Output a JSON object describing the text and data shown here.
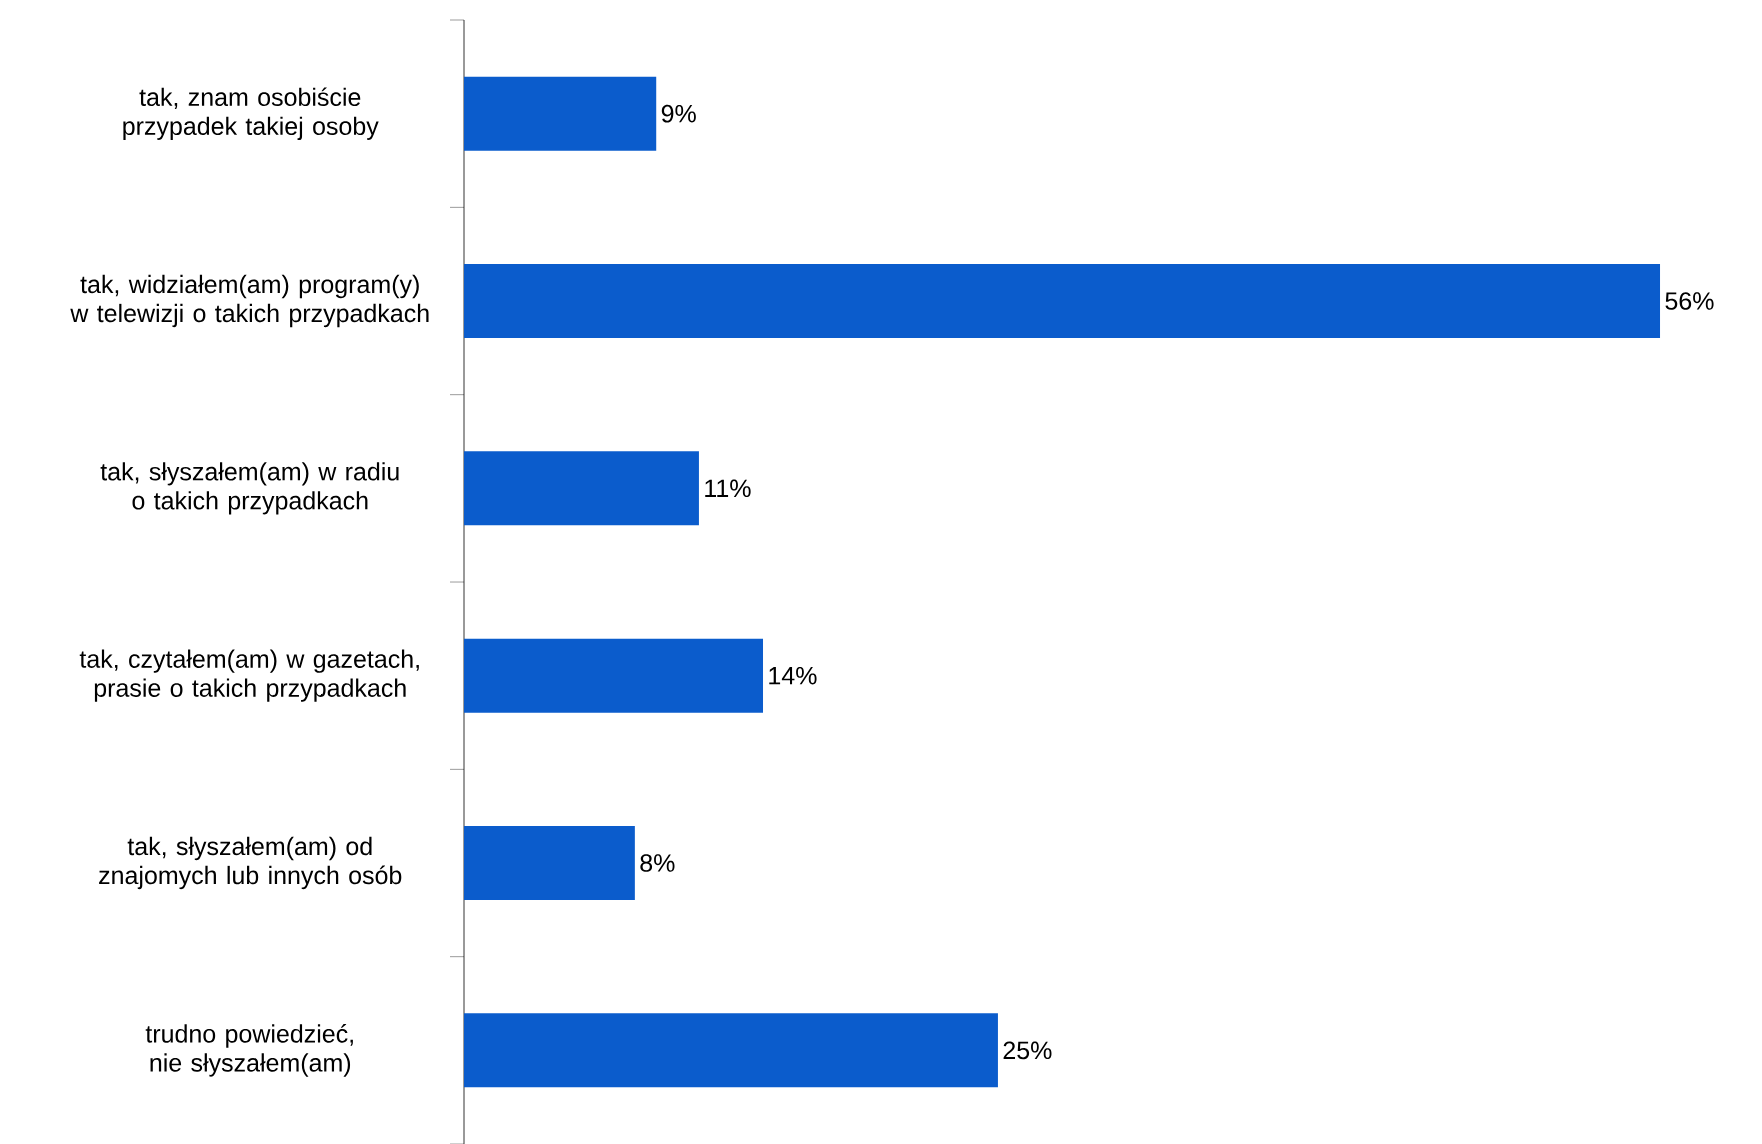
{
  "chart_data": {
    "type": "bar",
    "orientation": "horizontal",
    "color": "#0b5ccc",
    "categories": [
      "tak, znam osobiście przypadek takiej osoby",
      "tak, widziałem(am) program(y) w telewizji o takich przypadkach",
      "tak, słyszałem(am) w radiu o takich przypadkach",
      "tak, czytałem(am) w gazetach, prasie o takich przypadkach",
      "tak, słyszałem(am) od znajomych lub innych osób",
      "trudno powiedzieć, nie słyszałem(am)"
    ],
    "values": [
      9,
      56,
      11,
      14,
      8,
      25
    ],
    "value_labels": [
      "9%",
      "56%",
      "11%",
      "14%",
      "8%",
      "25%"
    ]
  }
}
